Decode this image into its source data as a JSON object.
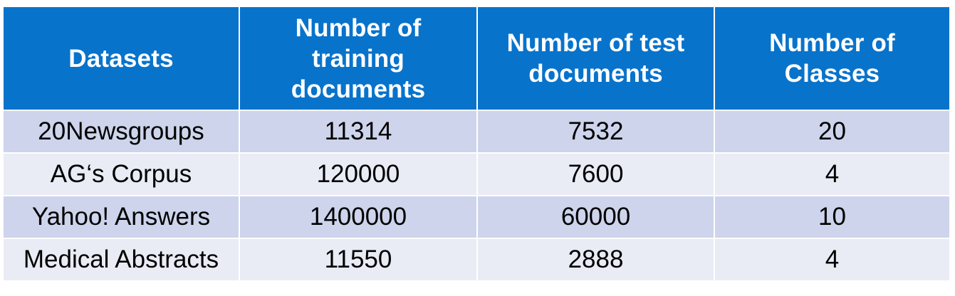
{
  "table": {
    "headers": [
      "Datasets",
      "Number of training documents",
      "Number of test documents",
      "Number of Classes"
    ],
    "rows": [
      [
        "20Newsgroups",
        "11314",
        "7532",
        "20"
      ],
      [
        "AG‘s Corpus",
        "120000",
        "7600",
        "4"
      ],
      [
        "Yahoo! Answers",
        "1400000",
        "60000",
        "10"
      ],
      [
        "Medical Abstracts",
        "11550",
        "2888",
        "4"
      ]
    ]
  },
  "colors": {
    "header_bg": "#0873cb",
    "header_text": "#ffffff",
    "row_odd_bg": "#cdd4eb",
    "row_even_bg": "#e9ebf5"
  }
}
